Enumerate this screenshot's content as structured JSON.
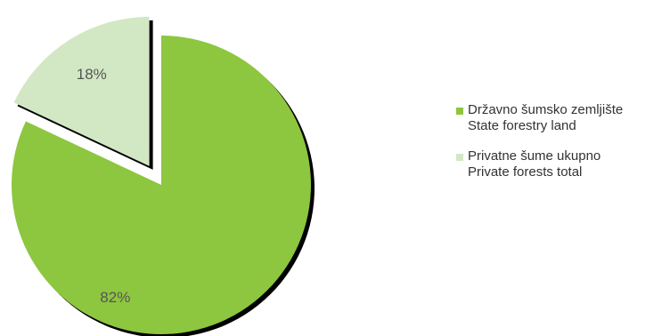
{
  "chart_data": {
    "type": "pie",
    "title": "",
    "slices": [
      {
        "label": "Državno šumsko zemljište",
        "label_en": "State forestry land",
        "value": 82,
        "value_label": "82%",
        "color": "#8dc63f",
        "exploded": false
      },
      {
        "label": "Privatne šume ukupno",
        "label_en": "Private forests total",
        "value": 18,
        "value_label": "18%",
        "color": "#d2e8c4",
        "exploded": true
      }
    ],
    "legend_position": "right"
  }
}
